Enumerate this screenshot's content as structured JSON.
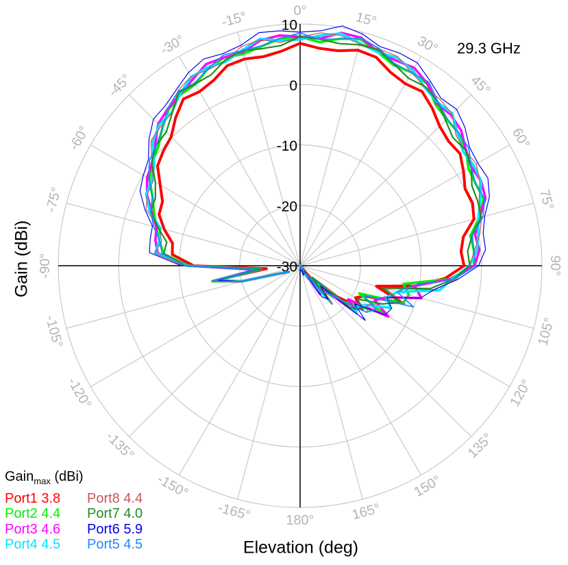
{
  "chart_data": {
    "type": "polar-line",
    "frequency_label": "29.3 GHz",
    "xlabel": "Elevation (deg)",
    "ylabel": "Gain (dBi)",
    "radial_range": [
      -30,
      10
    ],
    "radial_ticks": [
      "10",
      "0",
      "-10",
      "-20",
      "-30"
    ],
    "angular_ticks": [
      "0°",
      "15°",
      "30°",
      "45°",
      "60°",
      "75°",
      "90°",
      "105°",
      "120°",
      "135°",
      "150°",
      "165°",
      "180°",
      "-165°",
      "-150°",
      "-135°",
      "-120°",
      "-105°",
      "-90°",
      "-75°",
      "-60°",
      "-45°",
      "-30°",
      "-15°"
    ],
    "grid": true,
    "legend_title_main": "Gain",
    "legend_title_sub": "max",
    "legend_title_unit": " (dBi)",
    "legend_placement": "bottom-left",
    "series": [
      {
        "name": "Port1",
        "gain_max": "3.8",
        "color": "#ff0000",
        "width": 4
      },
      {
        "name": "Port2",
        "gain_max": "4.4",
        "color": "#00ee00",
        "width": 3.5
      },
      {
        "name": "Port3",
        "gain_max": "4.6",
        "color": "#ff00ff",
        "width": 3.5
      },
      {
        "name": "Port4",
        "gain_max": "4.5",
        "color": "#00e5ff",
        "width": 3.5
      },
      {
        "name": "Port8",
        "gain_max": "4.4",
        "color": "#cc5555",
        "width": 1.2
      },
      {
        "name": "Port7",
        "gain_max": "4.0",
        "color": "#228b22",
        "width": 2.2
      },
      {
        "name": "Port6",
        "gain_max": "5.9",
        "color": "#0000ee",
        "width": 1.2
      },
      {
        "name": "Port5",
        "gain_max": "4.5",
        "color": "#2288ff",
        "width": 1.8
      }
    ],
    "pattern_angles_deg": [
      -95,
      -90,
      -85,
      -80,
      -75,
      -70,
      -65,
      -60,
      -55,
      -50,
      -45,
      -40,
      -35,
      -30,
      -25,
      -20,
      -15,
      -10,
      -5,
      0,
      5,
      10,
      15,
      20,
      25,
      30,
      35,
      40,
      45,
      50,
      55,
      60,
      65,
      70,
      75,
      80,
      85,
      90,
      95,
      100,
      105,
      110,
      115,
      120,
      125,
      130,
      135,
      140,
      145,
      150,
      155,
      160,
      165,
      170
    ],
    "pattern_gain_dbi": [
      -23,
      -11,
      -6.5,
      -6.5,
      -5.5,
      -3.5,
      -2.5,
      -1.5,
      0,
      1.5,
      2.5,
      3.5,
      5,
      5.5,
      6,
      6.5,
      7,
      7.5,
      7.5,
      8,
      8,
      8.5,
      8.5,
      8,
      7.5,
      7,
      6.5,
      5.5,
      5,
      4,
      3.5,
      3,
      2.5,
      2,
      1,
      -0.5,
      -1,
      -1.5,
      -4.5,
      -9.5,
      -12.5,
      -13,
      -16,
      -15.5,
      -18.5,
      -19,
      -25,
      -24,
      -27,
      -30,
      -30,
      -30,
      -30,
      -30
    ]
  }
}
